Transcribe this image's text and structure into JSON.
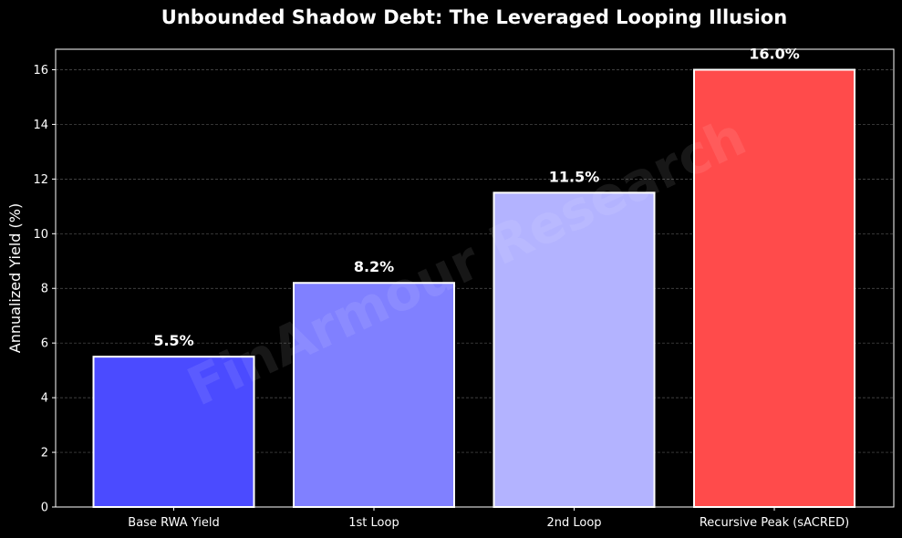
{
  "chart_data": {
    "type": "bar",
    "title": "Unbounded Shadow Debt: The Leveraged Looping Illusion",
    "xlabel": "",
    "ylabel": "Annualized Yield (%)",
    "categories": [
      "Base RWA Yield",
      "1st Loop",
      "2nd Loop",
      "Recursive Peak (sACRED)"
    ],
    "values": [
      5.5,
      8.2,
      11.5,
      16.0
    ],
    "value_labels": [
      "5.5%",
      "8.2%",
      "11.5%",
      "16.0%"
    ],
    "colors": [
      "#4b4bff",
      "#8080ff",
      "#b3b3ff",
      "#ff4b4b"
    ],
    "ylim": [
      0,
      16.75
    ],
    "yticks": [
      0,
      2,
      4,
      6,
      8,
      10,
      12,
      14,
      16
    ],
    "grid": true,
    "watermark": "FinArmour Research"
  }
}
